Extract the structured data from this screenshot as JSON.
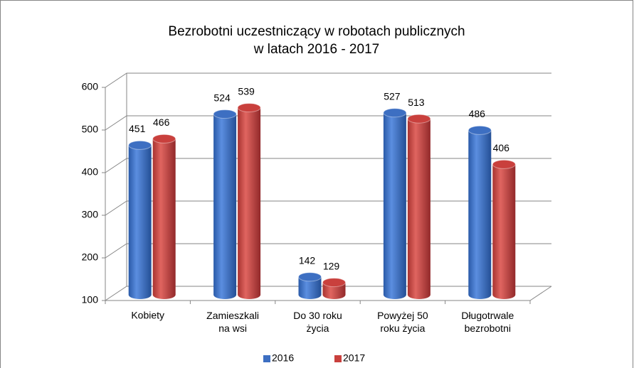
{
  "chart_data": {
    "type": "bar",
    "title": "Bezrobotni uczestniczący w robotach publicznych\nw latach 2016 - 2017",
    "categories": [
      "Kobiety",
      "Zamieszkali\nna wsi",
      "Do 30 roku\nżycia",
      "Powyżej 50\nroku życia",
      "Długotrwale\nbezrobotni"
    ],
    "series": [
      {
        "name": "2016",
        "color": "#3d6fc2",
        "values": [
          451,
          524,
          142,
          527,
          486
        ]
      },
      {
        "name": "2017",
        "color": "#c9403d",
        "values": [
          466,
          539,
          129,
          513,
          406
        ]
      }
    ],
    "ylim": [
      100,
      600
    ],
    "yticks": [
      100,
      200,
      300,
      400,
      500,
      600
    ],
    "grid": true,
    "legend": "bottom"
  }
}
